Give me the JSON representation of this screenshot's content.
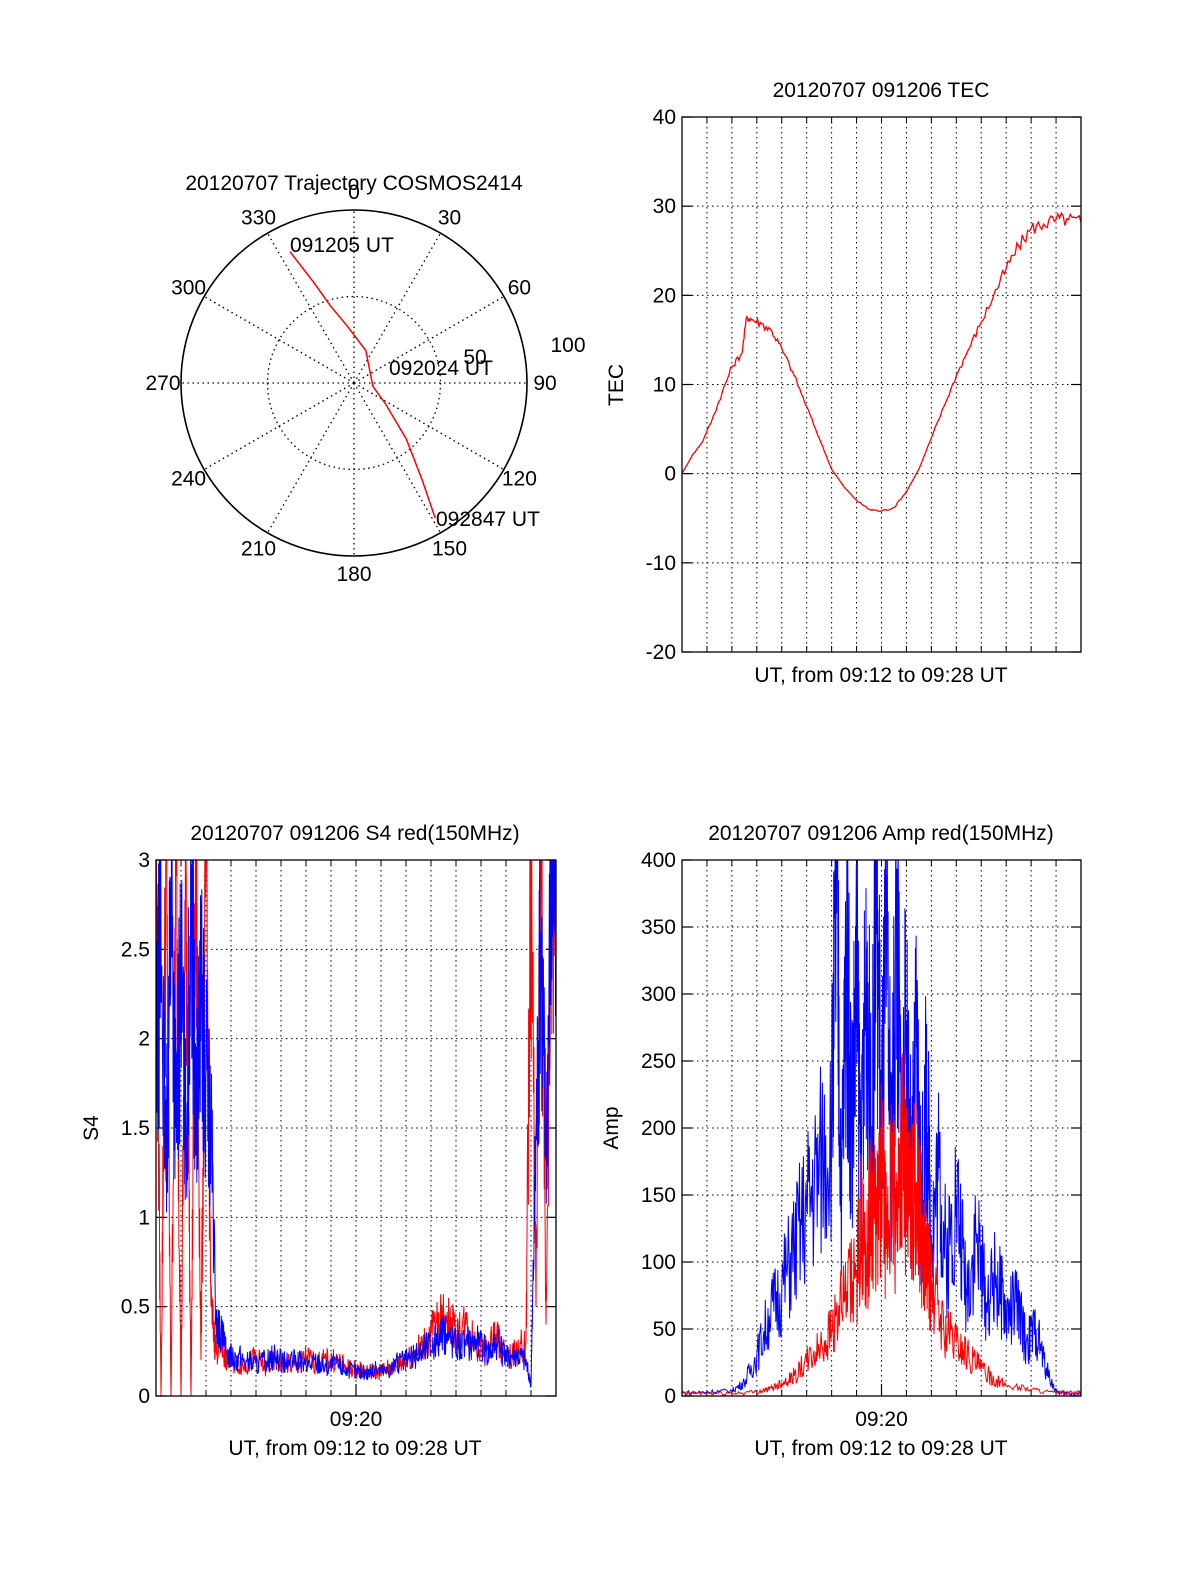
{
  "colors": {
    "red": "#ff0000",
    "blue": "#0000ff",
    "axis": "#000000",
    "grid": "#000000"
  },
  "chart_data": [
    {
      "type": "polar",
      "title": "20120707 Trajectory COSMOS2414",
      "angle_labels": [
        "0",
        "30",
        "60",
        "90",
        "120",
        "150",
        "180",
        "210",
        "240",
        "270",
        "300",
        "330"
      ],
      "radial_labels": [
        "50",
        "100"
      ],
      "radial_range": [
        0,
        100
      ],
      "grid": true,
      "annotations": [
        "091205 UT",
        "092024 UT",
        "092847 UT"
      ],
      "series": [
        {
          "color": "red",
          "points": [
            {
              "az": 334,
              "el": 14
            },
            {
              "az": 338,
              "el": 33
            },
            {
              "az": 343,
              "el": 48
            },
            {
              "az": 353,
              "el": 60
            },
            {
              "az": 20,
              "el": 72
            },
            {
              "az": 100,
              "el": 80
            },
            {
              "az": 124,
              "el": 70
            },
            {
              "az": 137,
              "el": 50
            },
            {
              "az": 145,
              "el": 28
            },
            {
              "az": 149,
              "el": 8
            }
          ]
        }
      ]
    },
    {
      "type": "line",
      "title": "20120707 091206 TEC",
      "xlabel": "UT, from 09:12 to 09:28 UT",
      "ylabel": "TEC",
      "xlim": [
        0,
        16
      ],
      "ylim": [
        -20,
        40
      ],
      "yticks": [
        "-20",
        "-10",
        "0",
        "10",
        "20",
        "30",
        "40"
      ],
      "grid": true,
      "series": [
        {
          "color": "red",
          "x": [
            0,
            0.4,
            0.8,
            1.2,
            1.6,
            2.0,
            2.4,
            2.6,
            2.8,
            3.2,
            3.6,
            4.0,
            4.5,
            5.0,
            5.5,
            6.0,
            6.5,
            7.0,
            7.5,
            8.0,
            8.5,
            9.0,
            9.5,
            10.0,
            10.5,
            11.0,
            11.5,
            12.0,
            12.5,
            13.0,
            13.5,
            14.0,
            14.5,
            15.0,
            15.5,
            16.0
          ],
          "y": [
            0,
            2.0,
            3.5,
            6.0,
            9.0,
            12.0,
            13.5,
            17.6,
            17.3,
            16.8,
            16.0,
            14.0,
            11.0,
            7.5,
            4.0,
            0.5,
            -1.5,
            -3.0,
            -4.0,
            -4.2,
            -3.8,
            -2.0,
            0.5,
            4.0,
            7.5,
            11.0,
            14.0,
            17.0,
            20.0,
            23.0,
            25.5,
            27.5,
            28.0,
            28.5,
            28.5,
            28.2
          ]
        }
      ]
    },
    {
      "type": "line",
      "title": "20120707 091206 S4 red(150MHz)",
      "xlabel": "UT, from 09:12 to 09:28 UT",
      "ylabel": "S4",
      "xlim": [
        0,
        16
      ],
      "ylim": [
        0,
        3
      ],
      "yticks": [
        "0",
        "0.5",
        "1",
        "1.5",
        "2",
        "2.5",
        "3"
      ],
      "xticks": [
        {
          "x": 8,
          "label": "09:20"
        }
      ],
      "grid": true,
      "series": [
        {
          "color": "red",
          "x": [
            0,
            0.2,
            0.4,
            0.6,
            0.8,
            1.0,
            1.2,
            1.4,
            1.6,
            1.8,
            2.0,
            2.2,
            2.4,
            2.6,
            2.8,
            3.2,
            3.6,
            4.0,
            4.4,
            4.8,
            5.2,
            5.6,
            6.0,
            6.4,
            6.8,
            7.2,
            7.6,
            8.0,
            8.4,
            8.8,
            9.2,
            9.6,
            10.0,
            10.4,
            10.8,
            11.2,
            11.6,
            12.0,
            12.4,
            12.8,
            13.2,
            13.6,
            14.0,
            14.4,
            14.8,
            15.0,
            15.2,
            15.4,
            15.6,
            15.8,
            16.0
          ],
          "y": [
            3,
            0,
            3,
            0,
            3,
            0,
            3,
            0,
            3,
            0.2,
            3,
            0.5,
            0.25,
            0.3,
            0.2,
            0.18,
            0.17,
            0.22,
            0.15,
            0.2,
            0.18,
            0.16,
            0.22,
            0.18,
            0.2,
            0.2,
            0.16,
            0.15,
            0.14,
            0.13,
            0.15,
            0.17,
            0.2,
            0.25,
            0.3,
            0.4,
            0.45,
            0.35,
            0.4,
            0.3,
            0.25,
            0.35,
            0.2,
            0.25,
            0.3,
            3,
            0.5,
            3,
            0.4,
            3,
            3
          ]
        },
        {
          "color": "blue",
          "x": [
            0,
            0.2,
            0.4,
            0.6,
            0.8,
            1.0,
            1.2,
            1.4,
            1.6,
            1.8,
            2.0,
            2.2,
            2.4,
            2.6,
            2.8,
            3.2,
            3.6,
            4.0,
            4.4,
            4.8,
            5.2,
            5.6,
            6.0,
            6.4,
            6.8,
            7.2,
            7.6,
            8.0,
            8.4,
            8.8,
            9.2,
            9.6,
            10.0,
            10.4,
            10.8,
            11.2,
            11.6,
            12.0,
            12.4,
            12.8,
            13.2,
            13.6,
            14.0,
            14.4,
            14.8,
            15.0,
            15.2,
            15.4,
            15.6,
            15.8,
            16.0
          ],
          "y": [
            1.8,
            2.6,
            1.2,
            2.9,
            1.5,
            2.4,
            1.4,
            2.8,
            1.6,
            2.2,
            1.8,
            1.5,
            0.4,
            0.35,
            0.25,
            0.22,
            0.2,
            0.18,
            0.2,
            0.22,
            0.18,
            0.2,
            0.17,
            0.2,
            0.16,
            0.18,
            0.15,
            0.14,
            0.13,
            0.15,
            0.14,
            0.18,
            0.2,
            0.22,
            0.28,
            0.3,
            0.35,
            0.3,
            0.28,
            0.32,
            0.25,
            0.3,
            0.22,
            0.25,
            0.2,
            0.05,
            1.5,
            2.6,
            1.4,
            2.9,
            3
          ]
        }
      ]
    },
    {
      "type": "line",
      "title": "20120707 091206 Amp red(150MHz)",
      "xlabel": "UT, from 09:12 to 09:28 UT",
      "ylabel": "Amp",
      "xlim": [
        0,
        16
      ],
      "ylim": [
        0,
        400
      ],
      "yticks": [
        "0",
        "50",
        "100",
        "150",
        "200",
        "250",
        "300",
        "350",
        "400"
      ],
      "xticks": [
        {
          "x": 8,
          "label": "09:20"
        }
      ],
      "grid": true,
      "series": [
        {
          "color": "blue",
          "x": [
            0,
            1,
            2,
            2.5,
            3,
            3.5,
            4,
            4.5,
            5,
            5.5,
            6,
            6.2,
            6.4,
            6.6,
            6.8,
            7.0,
            7.2,
            7.4,
            7.6,
            7.8,
            8.0,
            8.2,
            8.4,
            8.6,
            8.8,
            9.0,
            9.2,
            9.4,
            9.6,
            9.8,
            10.0,
            10.3,
            10.6,
            11.0,
            11.4,
            11.8,
            12.2,
            12.6,
            13.0,
            13.4,
            13.8,
            14.2,
            14.6,
            15,
            15.5,
            16
          ],
          "y": [
            2,
            3,
            4,
            10,
            30,
            60,
            80,
            110,
            140,
            170,
            210,
            360,
            150,
            340,
            200,
            300,
            170,
            330,
            180,
            380,
            200,
            330,
            170,
            360,
            190,
            280,
            150,
            260,
            140,
            220,
            120,
            170,
            100,
            150,
            80,
            120,
            70,
            90,
            60,
            70,
            40,
            50,
            20,
            3,
            2,
            2
          ]
        },
        {
          "color": "red",
          "x": [
            0,
            1,
            2,
            3,
            3.5,
            4,
            4.5,
            5,
            5.5,
            6,
            6.5,
            7,
            7.2,
            7.4,
            7.6,
            7.8,
            8.0,
            8.2,
            8.4,
            8.6,
            8.8,
            9.0,
            9.2,
            9.4,
            9.6,
            9.8,
            10,
            10.5,
            11,
            11.5,
            12,
            12.5,
            13,
            14,
            15,
            16
          ],
          "y": [
            2,
            2,
            2,
            3,
            5,
            10,
            15,
            25,
            35,
            50,
            70,
            90,
            130,
            100,
            150,
            120,
            170,
            110,
            160,
            130,
            200,
            150,
            140,
            160,
            120,
            100,
            80,
            50,
            40,
            30,
            20,
            12,
            8,
            5,
            2,
            2
          ]
        }
      ]
    }
  ]
}
